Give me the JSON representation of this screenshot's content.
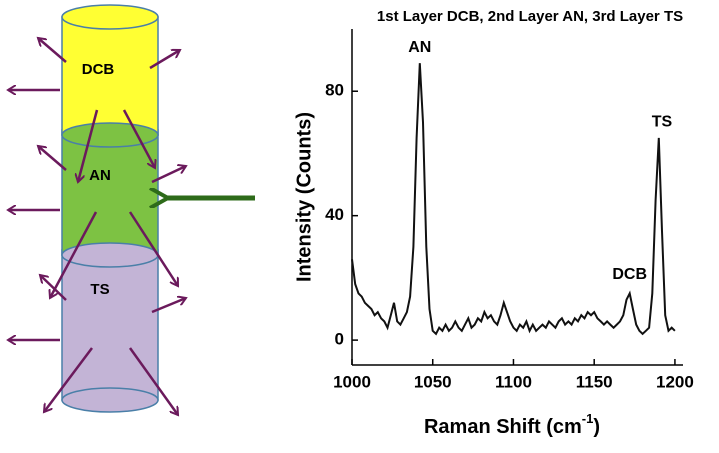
{
  "diagram": {
    "layers": [
      "DCB",
      "AN",
      "TS"
    ]
  },
  "chart_data": {
    "type": "line",
    "title": "1st Layer DCB, 2nd Layer AN, 3rd Layer TS",
    "x_label": {
      "text": "Raman Shift (cm",
      "sup": "-1",
      "tail": ")"
    },
    "y_label": "Intensity (Counts)",
    "annotations": [
      "AN",
      "DCB",
      "TS"
    ],
    "xlim": [
      1000,
      1205
    ],
    "xticks": [
      1000,
      1050,
      1100,
      1150,
      1200
    ],
    "ylim": [
      -8,
      100
    ],
    "yticks": [
      0,
      40,
      80
    ],
    "x": [
      1000,
      1002,
      1004,
      1006,
      1008,
      1010,
      1012,
      1014,
      1016,
      1018,
      1020,
      1022,
      1024,
      1026,
      1028,
      1030,
      1032,
      1034,
      1036,
      1038,
      1040,
      1042,
      1044,
      1046,
      1048,
      1050,
      1052,
      1054,
      1056,
      1058,
      1060,
      1062,
      1064,
      1066,
      1068,
      1070,
      1072,
      1074,
      1076,
      1078,
      1080,
      1082,
      1084,
      1086,
      1088,
      1090,
      1092,
      1094,
      1096,
      1098,
      1100,
      1102,
      1104,
      1106,
      1108,
      1110,
      1112,
      1114,
      1116,
      1118,
      1120,
      1122,
      1124,
      1126,
      1128,
      1130,
      1132,
      1134,
      1136,
      1138,
      1140,
      1142,
      1144,
      1146,
      1148,
      1150,
      1152,
      1154,
      1156,
      1158,
      1160,
      1162,
      1164,
      1166,
      1168,
      1170,
      1172,
      1174,
      1176,
      1178,
      1180,
      1182,
      1184,
      1186,
      1188,
      1190,
      1192,
      1194,
      1196,
      1198,
      1200
    ],
    "series": [
      {
        "color": "#111111",
        "values": [
          26,
          18,
          15,
          14,
          12,
          11,
          10,
          8,
          9,
          7,
          6,
          4,
          8,
          12,
          6,
          5,
          7,
          9,
          14,
          30,
          65,
          89,
          70,
          30,
          10,
          3,
          2,
          4,
          3,
          5,
          3,
          4,
          6,
          4,
          3,
          5,
          7,
          4,
          5,
          7,
          6,
          9,
          7,
          8,
          6,
          5,
          8,
          12,
          9,
          6,
          4,
          3,
          5,
          4,
          6,
          3,
          5,
          3,
          4,
          5,
          4,
          6,
          5,
          4,
          6,
          7,
          5,
          6,
          5,
          7,
          6,
          8,
          7,
          9,
          8,
          9,
          7,
          6,
          5,
          6,
          5,
          4,
          5,
          6,
          8,
          13,
          15,
          10,
          5,
          3,
          2,
          3,
          4,
          15,
          45,
          65,
          35,
          8,
          3,
          4,
          3
        ]
      }
    ]
  }
}
